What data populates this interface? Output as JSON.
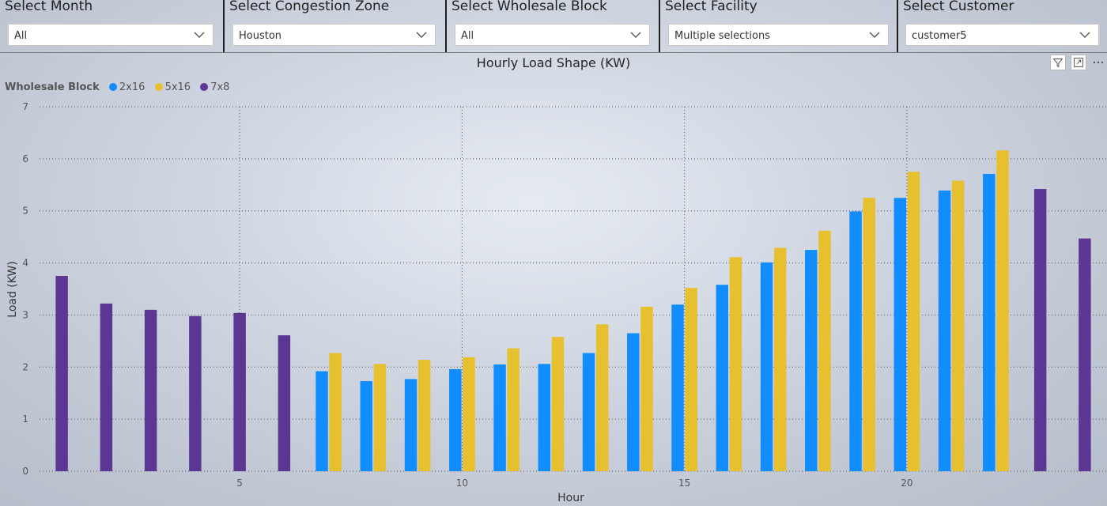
{
  "slicers": [
    {
      "title": "Select Month",
      "value": "All"
    },
    {
      "title": "Select Congestion Zone",
      "value": "Houston"
    },
    {
      "title": "Select Wholesale Block",
      "value": "All"
    },
    {
      "title": "Select Facility",
      "value": "Multiple selections"
    },
    {
      "title": "Select Customer",
      "value": "customer5"
    }
  ],
  "toolbar_icons": [
    "filter-icon",
    "focus-mode-icon",
    "more-options-icon"
  ],
  "chart_data": {
    "type": "bar",
    "title": "Hourly Load Shape (KW)",
    "xlabel": "Hour",
    "ylabel": "Load (KW)",
    "legend_title": "Wholesale Block",
    "legend_position": "top-left",
    "grid": true,
    "xlim": [
      0.5,
      24.5
    ],
    "ylim": [
      0,
      7
    ],
    "x_ticks": [
      5,
      10,
      15,
      20
    ],
    "y_ticks": [
      0,
      1,
      2,
      3,
      4,
      5,
      6,
      7
    ],
    "series": [
      {
        "name": "2x16",
        "color": "#118DFF",
        "points": [
          {
            "x": 7,
            "y": 1.92
          },
          {
            "x": 8,
            "y": 1.73
          },
          {
            "x": 9,
            "y": 1.77
          },
          {
            "x": 10,
            "y": 1.96
          },
          {
            "x": 11,
            "y": 2.05
          },
          {
            "x": 12,
            "y": 2.06
          },
          {
            "x": 13,
            "y": 2.27
          },
          {
            "x": 14,
            "y": 2.65
          },
          {
            "x": 15,
            "y": 3.2
          },
          {
            "x": 16,
            "y": 3.58
          },
          {
            "x": 17,
            "y": 4.01
          },
          {
            "x": 18,
            "y": 4.25
          },
          {
            "x": 19,
            "y": 4.99
          },
          {
            "x": 20,
            "y": 5.25
          },
          {
            "x": 21,
            "y": 5.39
          },
          {
            "x": 22,
            "y": 5.71
          }
        ]
      },
      {
        "name": "5x16",
        "color": "#E6C02F",
        "points": [
          {
            "x": 7,
            "y": 2.27
          },
          {
            "x": 8,
            "y": 2.06
          },
          {
            "x": 9,
            "y": 2.14
          },
          {
            "x": 10,
            "y": 2.19
          },
          {
            "x": 11,
            "y": 2.36
          },
          {
            "x": 12,
            "y": 2.58
          },
          {
            "x": 13,
            "y": 2.82
          },
          {
            "x": 14,
            "y": 3.16
          },
          {
            "x": 15,
            "y": 3.52
          },
          {
            "x": 16,
            "y": 4.11
          },
          {
            "x": 17,
            "y": 4.29
          },
          {
            "x": 18,
            "y": 4.62
          },
          {
            "x": 19,
            "y": 5.25
          },
          {
            "x": 20,
            "y": 5.75
          },
          {
            "x": 21,
            "y": 5.58
          },
          {
            "x": 22,
            "y": 6.16
          }
        ]
      },
      {
        "name": "7x8",
        "color": "#5B3793",
        "points": [
          {
            "x": 1,
            "y": 3.75
          },
          {
            "x": 2,
            "y": 3.22
          },
          {
            "x": 3,
            "y": 3.1
          },
          {
            "x": 4,
            "y": 2.98
          },
          {
            "x": 5,
            "y": 3.04
          },
          {
            "x": 6,
            "y": 2.61
          },
          {
            "x": 23,
            "y": 5.42
          },
          {
            "x": 24,
            "y": 4.47
          }
        ]
      }
    ]
  }
}
